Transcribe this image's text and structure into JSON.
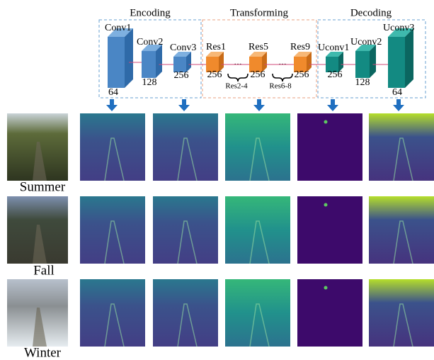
{
  "sections": [
    "Encoding",
    "Transforming",
    "Decoding"
  ],
  "layers": [
    {
      "name": "Conv1",
      "channels": 64
    },
    {
      "name": "Conv2",
      "channels": 128
    },
    {
      "name": "Conv3",
      "channels": 256
    },
    {
      "name": "Res1",
      "channels": 256
    },
    {
      "name": "Res5",
      "channels": 256
    },
    {
      "name": "Res9",
      "channels": 256
    },
    {
      "name": "Uconv1",
      "channels": 256
    },
    {
      "name": "Uconv2",
      "channels": 128
    },
    {
      "name": "Uconv3",
      "channels": 64
    }
  ],
  "ellipses": [
    "...",
    "..."
  ],
  "skipped": [
    "Res2-4",
    "Res6-8"
  ],
  "rows": [
    "Summer",
    "Fall",
    "Winter"
  ]
}
